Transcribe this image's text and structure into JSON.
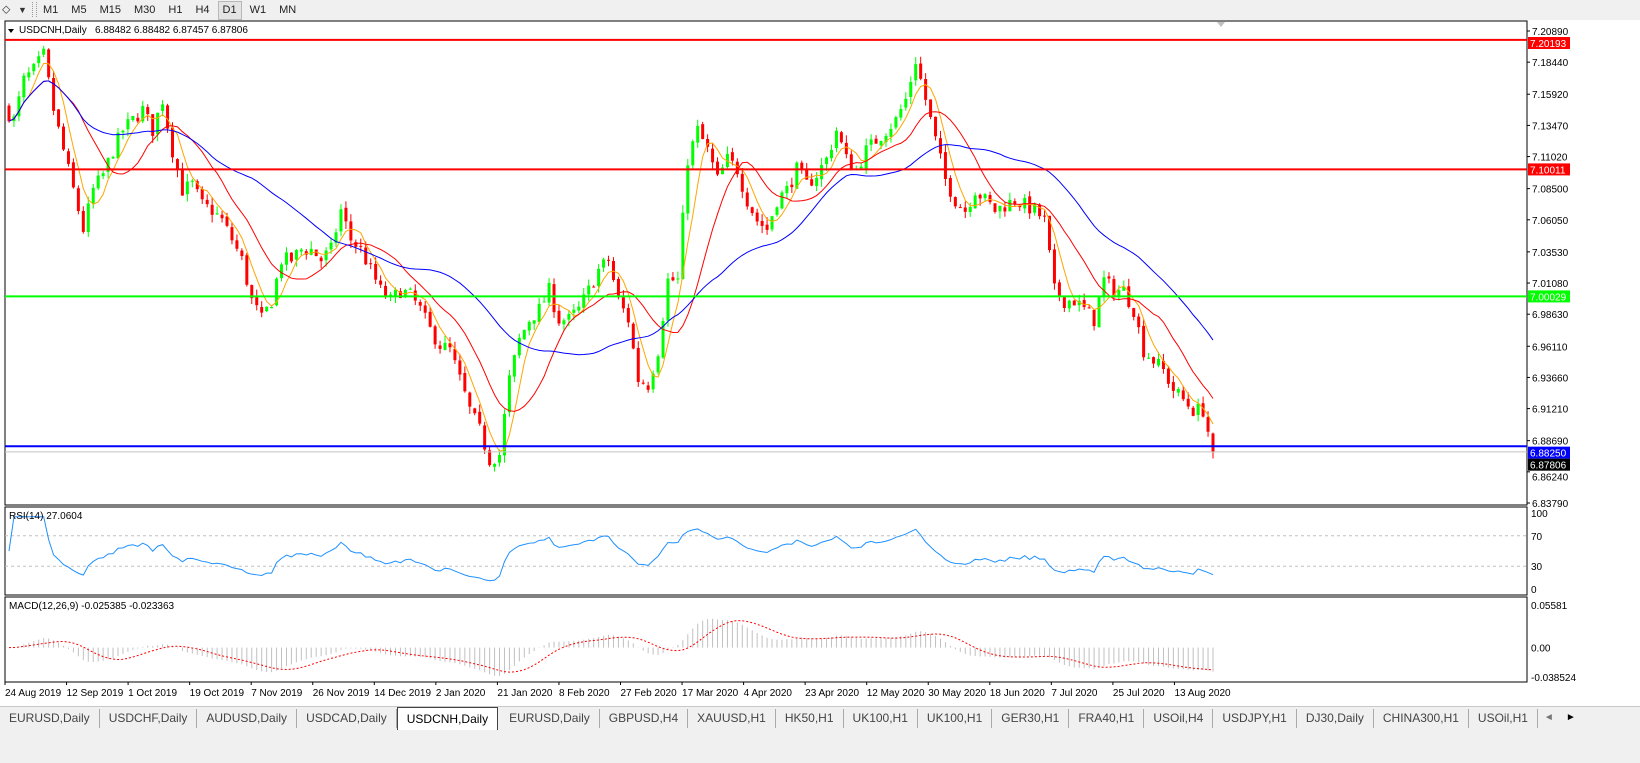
{
  "toolbar": {
    "timeframes": [
      "M1",
      "M5",
      "M15",
      "M30",
      "H1",
      "H4",
      "D1",
      "W1",
      "MN"
    ],
    "active_timeframe": "D1"
  },
  "chart_header": {
    "symbol": "USDCNH,Daily",
    "ohlc": "6.88482 6.88482 6.87457 6.87806"
  },
  "chart_data": {
    "type": "candlestick",
    "symbol": "USDCNH",
    "timeframe": "Daily",
    "ylim": [
      6.8379,
      7.2089
    ],
    "price_ticks": [
      "7.20890",
      "7.18440",
      "7.15920",
      "7.13470",
      "7.11020",
      "7.08500",
      "7.06050",
      "7.03530",
      "7.01080",
      "6.98630",
      "6.96110",
      "6.93660",
      "6.91210",
      "6.88690",
      "6.86240",
      "6.83790"
    ],
    "x_ticks": [
      "24 Aug 2019",
      "12 Sep 2019",
      "1 Oct 2019",
      "19 Oct 2019",
      "7 Nov 2019",
      "26 Nov 2019",
      "14 Dec 2019",
      "2 Jan 2020",
      "21 Jan 2020",
      "8 Feb 2020",
      "27 Feb 2020",
      "17 Mar 2020",
      "4 Apr 2020",
      "23 Apr 2020",
      "12 May 2020",
      "30 May 2020",
      "18 Jun 2020",
      "7 Jul 2020",
      "25 Jul 2020",
      "13 Aug 2020"
    ],
    "approx_close_path": [
      7.139,
      7.17,
      7.178,
      7.19,
      7.147,
      7.115,
      7.084,
      7.053,
      7.084,
      7.096,
      7.115,
      7.131,
      7.139,
      7.147,
      7.131,
      7.155,
      7.115,
      7.084,
      7.088,
      7.072,
      7.068,
      7.06,
      7.045,
      7.029,
      6.997,
      6.982,
      6.997,
      7.029,
      7.029,
      7.037,
      7.037,
      7.029,
      7.037,
      7.068,
      7.045,
      7.037,
      7.021,
      7.005,
      6.997,
      7.005,
      7.001,
      6.99,
      6.974,
      6.962,
      6.958,
      6.935,
      6.911,
      6.895,
      6.872,
      6.876,
      6.935,
      6.966,
      6.982,
      6.99,
      7.005,
      6.982,
      6.982,
      6.99,
      7.005,
      7.021,
      7.029,
      6.997,
      6.982,
      6.935,
      6.931,
      6.958,
      7.013,
      7.013,
      7.108,
      7.131,
      7.115,
      7.092,
      7.108,
      7.1,
      7.076,
      7.06,
      7.053,
      7.076,
      7.084,
      7.1,
      7.088,
      7.096,
      7.108,
      7.131,
      7.108,
      7.1,
      7.115,
      7.123,
      7.131,
      7.139,
      7.155,
      7.186,
      7.155,
      7.123,
      7.092,
      7.076,
      7.068,
      7.084,
      7.076,
      7.068,
      7.072,
      7.076,
      7.072,
      7.068,
      7.06,
      7.005,
      6.997,
      6.997,
      6.99,
      6.982,
      7.013,
      7.005,
      7.005,
      6.99,
      6.958,
      6.95,
      6.942,
      6.927,
      6.919,
      6.911,
      6.911,
      6.878
    ],
    "bull_color": "#00ff00",
    "bear_color": "#ff0000",
    "moving_averages": [
      {
        "color": "#ffa500"
      },
      {
        "color": "#ff0000"
      },
      {
        "color": "#0000ff"
      }
    ],
    "horizontal_lines": [
      {
        "price": 7.20193,
        "label": "7.20193",
        "color": "#ff0000"
      },
      {
        "price": 7.10011,
        "label": "7.10011",
        "color": "#ff0000"
      },
      {
        "price": 7.00029,
        "label": "7.00029",
        "color": "#00ff00"
      },
      {
        "price": 6.8825,
        "label": "6.88250",
        "color": "#0000ff"
      }
    ],
    "current_price": {
      "price": 6.87806,
      "label": "6.87806",
      "color": "#000000"
    },
    "rsi": {
      "label": "RSI(14) 27.0604",
      "ticks": [
        "100",
        "70",
        "30",
        "0"
      ],
      "levels": [
        70,
        30
      ],
      "color": "#1e90ff"
    },
    "macd": {
      "label": "MACD(12,26,9) -0.025385 -0.023363",
      "ticks": [
        "0.05581",
        "0.00",
        "-0.038524"
      ],
      "ylim": [
        -0.038524,
        0.05581
      ],
      "histogram_color": "#c0c0c0",
      "signal_color": "#ff0000"
    }
  },
  "tabs": [
    {
      "label": "EURUSD,Daily"
    },
    {
      "label": "USDCHF,Daily"
    },
    {
      "label": "AUDUSD,Daily"
    },
    {
      "label": "USDCAD,Daily"
    },
    {
      "label": "USDCNH,Daily",
      "active": true
    },
    {
      "label": "EURUSD,Daily"
    },
    {
      "label": "GBPUSD,H4"
    },
    {
      "label": "XAUUSD,H1"
    },
    {
      "label": "HK50,H1"
    },
    {
      "label": "UK100,H1"
    },
    {
      "label": "UK100,H1"
    },
    {
      "label": "GER30,H1"
    },
    {
      "label": "FRA40,H1"
    },
    {
      "label": "USOil,H4"
    },
    {
      "label": "USDJPY,H1"
    },
    {
      "label": "DJ30,Daily"
    },
    {
      "label": "CHINA300,H1"
    },
    {
      "label": "USOil,H1"
    }
  ]
}
